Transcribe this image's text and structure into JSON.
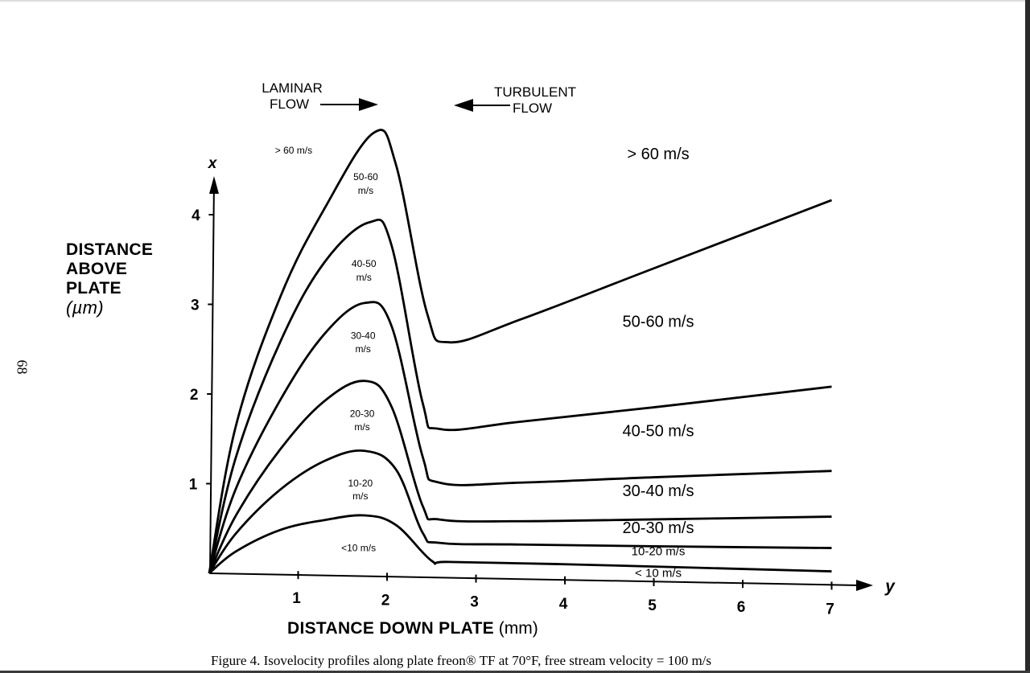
{
  "page_number": "68",
  "caption": "Figure 4. Isovelocity profiles along plate freon® TF at 70°F, free stream velocity  =  100 m/s",
  "flow": {
    "laminar_line1": "LAMINAR",
    "laminar_line2": "FLOW",
    "turbulent_line1": "TURBULENT",
    "turbulent_line2": "FLOW"
  },
  "chart_data": {
    "type": "line",
    "title": "",
    "xlabel": "DISTANCE DOWN PLATE",
    "xlabel_unit": "(mm)",
    "ylabel_lines": [
      "DISTANCE",
      "ABOVE",
      "PLATE"
    ],
    "ylabel_unit": "(µm)",
    "x_axis_symbol": "y",
    "y_axis_symbol": "x",
    "xlim": [
      0,
      7.4
    ],
    "ylim": [
      0,
      4.4
    ],
    "x_ticks": [
      "1",
      "2",
      "3",
      "4",
      "5",
      "6",
      "7"
    ],
    "y_ticks": [
      "1",
      "2",
      "3",
      "4"
    ],
    "grid": false,
    "series": [
      {
        "points": [
          [
            0,
            0
          ],
          [
            0.3,
            0.25
          ],
          [
            0.8,
            0.5
          ],
          [
            1.3,
            0.62
          ],
          [
            1.75,
            0.68
          ],
          [
            2.1,
            0.58
          ],
          [
            2.5,
            0.19
          ],
          [
            2.7,
            0.18
          ],
          [
            4.0,
            0.18
          ],
          [
            5.5,
            0.17
          ],
          [
            7.0,
            0.16
          ]
        ]
      },
      {
        "points": [
          [
            0,
            0
          ],
          [
            0.3,
            0.45
          ],
          [
            0.8,
            0.95
          ],
          [
            1.3,
            1.28
          ],
          [
            1.75,
            1.4
          ],
          [
            2.1,
            1.2
          ],
          [
            2.4,
            0.5
          ],
          [
            2.6,
            0.39
          ],
          [
            3.5,
            0.39
          ],
          [
            5.0,
            0.4
          ],
          [
            7.0,
            0.42
          ]
        ]
      },
      {
        "points": [
          [
            0,
            0
          ],
          [
            0.3,
            0.65
          ],
          [
            0.8,
            1.4
          ],
          [
            1.3,
            1.95
          ],
          [
            1.75,
            2.18
          ],
          [
            2.05,
            1.9
          ],
          [
            2.4,
            0.8
          ],
          [
            2.6,
            0.65
          ],
          [
            3.5,
            0.65
          ],
          [
            5.0,
            0.7
          ],
          [
            7.0,
            0.77
          ]
        ]
      },
      {
        "points": [
          [
            0,
            0
          ],
          [
            0.3,
            0.95
          ],
          [
            0.8,
            1.95
          ],
          [
            1.3,
            2.7
          ],
          [
            1.75,
            3.05
          ],
          [
            2.05,
            2.8
          ],
          [
            2.4,
            1.35
          ],
          [
            2.6,
            1.06
          ],
          [
            3.5,
            1.08
          ],
          [
            5.0,
            1.17
          ],
          [
            7.0,
            1.28
          ]
        ]
      },
      {
        "points": [
          [
            0,
            0
          ],
          [
            0.3,
            1.3
          ],
          [
            0.8,
            2.6
          ],
          [
            1.3,
            3.5
          ],
          [
            1.8,
            3.95
          ],
          [
            2.05,
            3.7
          ],
          [
            2.4,
            1.95
          ],
          [
            2.6,
            1.66
          ],
          [
            3.5,
            1.76
          ],
          [
            5.0,
            1.95
          ],
          [
            7.0,
            2.22
          ]
        ]
      },
      {
        "points": [
          [
            0,
            0
          ],
          [
            0.3,
            1.65
          ],
          [
            0.8,
            3.1
          ],
          [
            1.3,
            4.1
          ],
          [
            1.85,
            4.95
          ],
          [
            2.1,
            4.6
          ],
          [
            2.45,
            2.95
          ],
          [
            2.7,
            2.63
          ],
          [
            3.5,
            2.9
          ],
          [
            5.0,
            3.5
          ],
          [
            7.0,
            4.3
          ]
        ]
      }
    ],
    "region_labels": [
      {
        "text": "> 60 m/s",
        "x": 0.95,
        "y": 4.7,
        "size": "small"
      },
      {
        "text": "50-60",
        "x": 1.76,
        "y": 4.42,
        "size": "small"
      },
      {
        "text": "m/s",
        "x": 1.76,
        "y": 4.27,
        "size": "small"
      },
      {
        "text": "40-50",
        "x": 1.74,
        "y": 3.45,
        "size": "small"
      },
      {
        "text": "m/s",
        "x": 1.74,
        "y": 3.3,
        "size": "small"
      },
      {
        "text": "30-40",
        "x": 1.73,
        "y": 2.65,
        "size": "small"
      },
      {
        "text": "m/s",
        "x": 1.73,
        "y": 2.5,
        "size": "small"
      },
      {
        "text": "20-30",
        "x": 1.72,
        "y": 1.78,
        "size": "small"
      },
      {
        "text": "m/s",
        "x": 1.72,
        "y": 1.63,
        "size": "small"
      },
      {
        "text": "10-20",
        "x": 1.7,
        "y": 1.0,
        "size": "small"
      },
      {
        "text": "m/s",
        "x": 1.7,
        "y": 0.86,
        "size": "small"
      },
      {
        "text": "<10 m/s",
        "x": 1.68,
        "y": 0.28,
        "size": "small"
      },
      {
        "text": "> 60 m/s",
        "x": 5.05,
        "y": 4.72,
        "size": "large"
      },
      {
        "text": "50-60 m/s",
        "x": 5.05,
        "y": 2.85,
        "size": "large"
      },
      {
        "text": "40-50 m/s",
        "x": 5.05,
        "y": 1.63,
        "size": "large"
      },
      {
        "text": "30-40 m/s",
        "x": 5.05,
        "y": 0.96,
        "size": "large"
      },
      {
        "text": "20-30 m/s",
        "x": 5.05,
        "y": 0.55,
        "size": "large"
      },
      {
        "text": "10-20 m/s",
        "x": 5.05,
        "y": 0.3,
        "size": "medium"
      },
      {
        "text": "< 10 m/s",
        "x": 5.05,
        "y": 0.06,
        "size": "medium"
      }
    ]
  }
}
